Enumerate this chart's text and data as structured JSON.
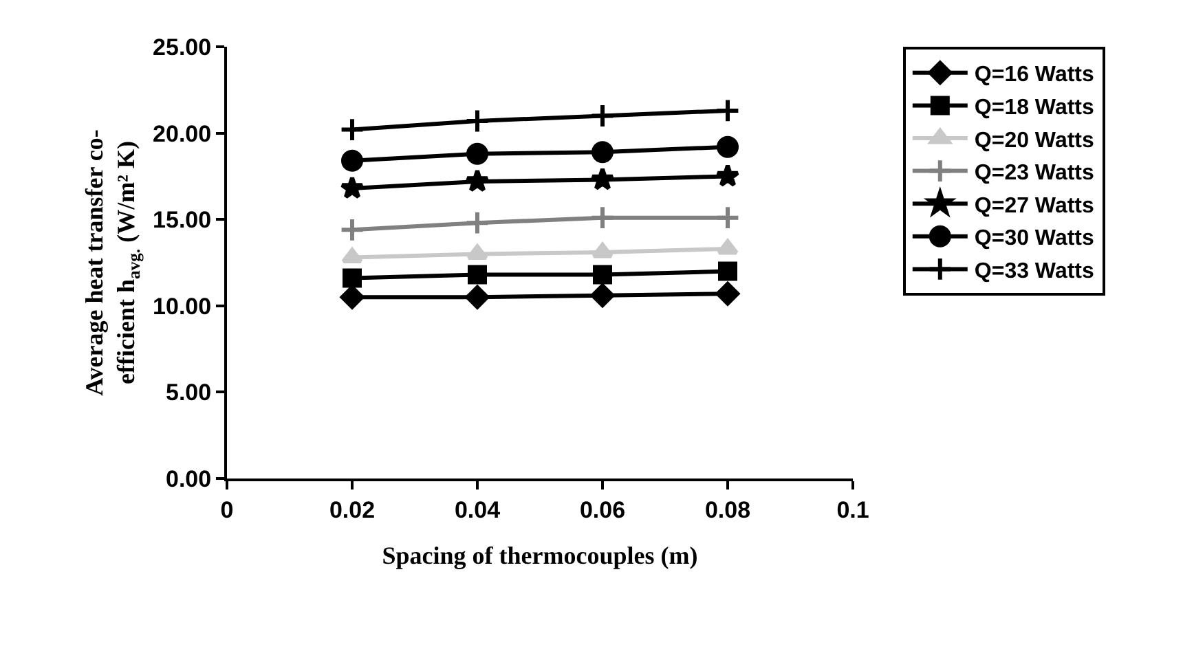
{
  "chart_data": {
    "type": "line",
    "xlabel": "Spacing of thermocouples (m)",
    "ylabel": "Average heat transfer co-efficient h$_{avg.}$ (W/m² K)",
    "x": [
      0.02,
      0.04,
      0.06,
      0.08
    ],
    "xlim": [
      0,
      0.1
    ],
    "xticks": [
      0,
      0.02,
      0.04,
      0.06,
      0.08,
      0.1
    ],
    "ylim": [
      0,
      25
    ],
    "yticks": [
      {
        "value": 0,
        "label": "0.00"
      },
      {
        "value": 5,
        "label": "5.00"
      },
      {
        "value": 10,
        "label": "10.00"
      },
      {
        "value": 15,
        "label": "15.00"
      },
      {
        "value": 20,
        "label": "20.00"
      },
      {
        "value": 25,
        "label": "25.00"
      }
    ],
    "grid": false,
    "legend": "right",
    "line_style": "solid",
    "series": [
      {
        "name": "Q=16 Watts",
        "color": "#000000",
        "marker": "diamond",
        "values": [
          10.5,
          10.5,
          10.6,
          10.7
        ]
      },
      {
        "name": "Q=18 Watts",
        "color": "#000000",
        "marker": "square",
        "values": [
          11.6,
          11.8,
          11.8,
          12.0
        ]
      },
      {
        "name": "Q=20 Watts",
        "color": "#c8c8c8",
        "marker": "triangle",
        "values": [
          12.8,
          13.0,
          13.1,
          13.3
        ]
      },
      {
        "name": "Q=23 Watts",
        "color": "#808080",
        "marker": "cross",
        "values": [
          14.4,
          14.8,
          15.1,
          15.1
        ]
      },
      {
        "name": "Q=27 Watts",
        "color": "#000000",
        "marker": "star",
        "values": [
          16.8,
          17.2,
          17.3,
          17.5
        ]
      },
      {
        "name": "Q=30 Watts",
        "color": "#000000",
        "marker": "circle",
        "values": [
          18.4,
          18.8,
          18.9,
          19.2
        ]
      },
      {
        "name": "Q=33 Watts",
        "color": "#000000",
        "marker": "cross",
        "values": [
          20.2,
          20.7,
          21.0,
          21.3
        ]
      }
    ]
  }
}
